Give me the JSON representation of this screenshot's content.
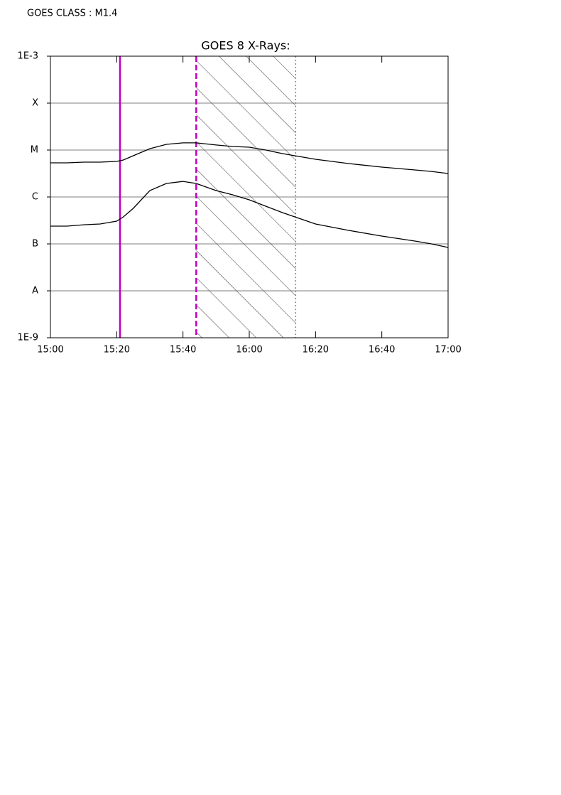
{
  "header": {
    "text": "GOES CLASS : M1.4"
  },
  "chart_data": {
    "type": "line",
    "title": "GOES 8 X-Rays:",
    "x": [
      "15:00",
      "15:05",
      "15:10",
      "15:15",
      "15:20",
      "15:22",
      "15:25",
      "15:30",
      "15:35",
      "15:40",
      "15:44",
      "15:50",
      "15:55",
      "16:00",
      "16:05",
      "16:10",
      "16:15",
      "16:20",
      "16:30",
      "16:40",
      "16:50",
      "16:55",
      "17:00"
    ],
    "series": [
      {
        "color": "#000000",
        "values": [
          5.33e-06,
          5.33e-06,
          5.52e-06,
          5.52e-06,
          5.73e-06,
          6.14e-06,
          7.57e-06,
          1.07e-05,
          1.32e-05,
          1.42e-05,
          1.42e-05,
          1.28e-05,
          1.19e-05,
          1.15e-05,
          1e-05,
          8.4e-06,
          7.3e-06,
          6.35e-06,
          5.15e-06,
          4.33e-06,
          3.77e-06,
          3.5e-06,
          3.16e-06
        ]
      },
      {
        "color": "#000000",
        "values": [
          2.39e-07,
          2.39e-07,
          2.56e-07,
          2.66e-07,
          3.05e-07,
          3.77e-07,
          5.73e-07,
          1.37e-06,
          1.94e-06,
          2.15e-06,
          1.94e-06,
          1.37e-06,
          1.11e-06,
          8.7e-07,
          6.36e-07,
          4.64e-07,
          3.51e-07,
          2.66e-07,
          1.94e-07,
          1.47e-07,
          1.15e-07,
          1e-07,
          8.4e-08
        ]
      }
    ],
    "xlim": [
      "15:00",
      "17:00"
    ],
    "xticks": [
      "15:00",
      "15:20",
      "15:40",
      "16:00",
      "16:20",
      "16:40",
      "17:00"
    ],
    "ylim": [
      1e-09,
      0.001
    ],
    "yscale": "log",
    "yticks": [
      {
        "value": 1e-09,
        "label": "1E-9"
      },
      {
        "value": 1e-08,
        "label": "A"
      },
      {
        "value": 1e-07,
        "label": "B"
      },
      {
        "value": 1e-06,
        "label": "C"
      },
      {
        "value": 1e-05,
        "label": "M"
      },
      {
        "value": 0.0001,
        "label": "X"
      },
      {
        "value": 0.001,
        "label": "1E-3"
      }
    ],
    "grid": true,
    "markers": [
      {
        "x": "15:21",
        "color": "#c000c0",
        "style": "solid"
      },
      {
        "x": "15:44",
        "color": "#c000c0",
        "style": "dashed"
      },
      {
        "x": "16:14",
        "color": "#888888",
        "style": "dotted"
      }
    ],
    "shaded": [
      "15:44",
      "16:14"
    ]
  }
}
